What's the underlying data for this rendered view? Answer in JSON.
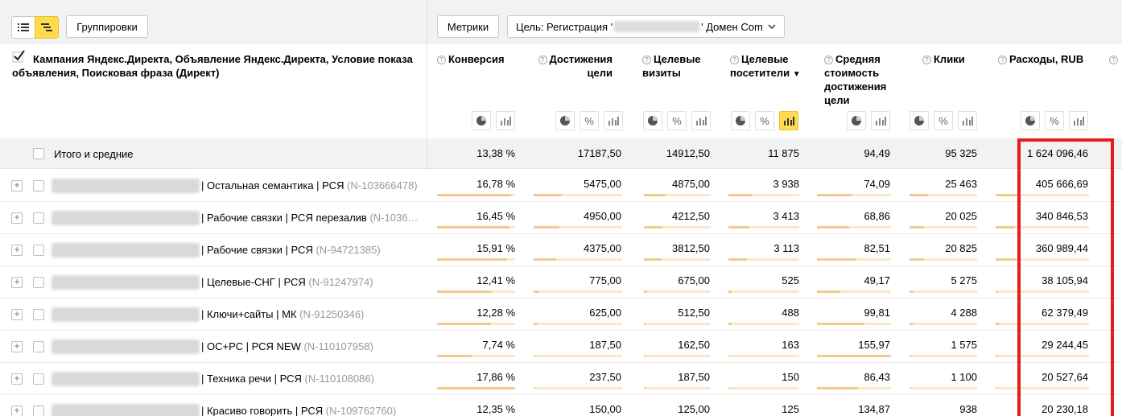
{
  "toolbar": {
    "groupings_label": "Группировки",
    "metrics_label": "Метрики",
    "goal_prefix": "Цель: Регистрация '",
    "goal_suffix": "' Домен Com"
  },
  "dimension_header": "Кампания Яндекс.Директа, Объявление Яндекс.Директа, Условие показа объявления, Поисковая фраза (Директ)",
  "columns": [
    {
      "label": "Конверсия"
    },
    {
      "label": "Достижения цели"
    },
    {
      "label": "Целевые визиты"
    },
    {
      "label": "Целевые посетители",
      "sort": "▼"
    },
    {
      "label": "Средняя стоимость достижения цели"
    },
    {
      "label": "Клики"
    },
    {
      "label": "Расходы, RUB"
    }
  ],
  "totals": {
    "label": "Итого и средние",
    "values": [
      "13,38 %",
      "17187,50",
      "14912,50",
      "11 875",
      "94,49",
      "95 325",
      "1 624 096,46"
    ]
  },
  "rows": [
    {
      "name": "| Остальная семантика | РСЯ ",
      "id": "(N-103666478)",
      "values": [
        "16,78 %",
        "5475,00",
        "4875,00",
        "3 938",
        "74,09",
        "25 463",
        "405 666,69"
      ],
      "fills": [
        0.95,
        0.32,
        0.33,
        0.33,
        0.48,
        0.27,
        0.25
      ]
    },
    {
      "name": "| Рабочие связки | РСЯ перезалив ",
      "id": "(N-1036…",
      "values": [
        "16,45 %",
        "4950,00",
        "4212,50",
        "3 413",
        "68,86",
        "20 025",
        "340 846,53"
      ],
      "fills": [
        0.93,
        0.29,
        0.28,
        0.29,
        0.44,
        0.21,
        0.21
      ]
    },
    {
      "name": "| Рабочие связки | РСЯ ",
      "id": "(N-94721385)",
      "values": [
        "15,91 %",
        "4375,00",
        "3812,50",
        "3 113",
        "82,51",
        "20 825",
        "360 989,44"
      ],
      "fills": [
        0.9,
        0.25,
        0.26,
        0.26,
        0.53,
        0.22,
        0.22
      ]
    },
    {
      "name": "| Целевые-СНГ | РСЯ ",
      "id": "(N-91247974)",
      "values": [
        "12,41 %",
        "775,00",
        "675,00",
        "525",
        "49,17",
        "5 275",
        "38 105,94"
      ],
      "fills": [
        0.7,
        0.05,
        0.05,
        0.04,
        0.32,
        0.06,
        0.02
      ]
    },
    {
      "name": "| Ключи+сайты | МК ",
      "id": "(N-91250346)",
      "values": [
        "12,28 %",
        "625,00",
        "512,50",
        "488",
        "99,81",
        "4 288",
        "62 379,49"
      ],
      "fills": [
        0.69,
        0.04,
        0.03,
        0.04,
        0.64,
        0.05,
        0.04
      ]
    },
    {
      "name": "| ОС+РС | РСЯ NEW ",
      "id": "(N-110107958)",
      "values": [
        "7,74 %",
        "187,50",
        "162,50",
        "163",
        "155,97",
        "1 575",
        "29 244,45"
      ],
      "fills": [
        0.44,
        0.01,
        0.01,
        0.01,
        1.0,
        0.02,
        0.02
      ]
    },
    {
      "name": "| Техника речи | РСЯ ",
      "id": "(N-110108086)",
      "values": [
        "17,86 %",
        "237,50",
        "187,50",
        "150",
        "86,43",
        "1 100",
        "20 527,64"
      ],
      "fills": [
        1.0,
        0.01,
        0.01,
        0.01,
        0.55,
        0.01,
        0.01
      ]
    },
    {
      "name": "| Красиво говорить | РСЯ ",
      "id": "(N-109762760)",
      "values": [
        "12,35 %",
        "150,00",
        "125,00",
        "125",
        "134,87",
        "938",
        "20 230,18"
      ],
      "fills": [
        0.69,
        0.01,
        0.01,
        0.01,
        0.86,
        0.01,
        0.01
      ]
    }
  ],
  "colors": {
    "accent": "#ffdb4d",
    "bar": "#f6c98b",
    "bar_track": "#fbe7c9",
    "highlight": "#e51c1c"
  }
}
